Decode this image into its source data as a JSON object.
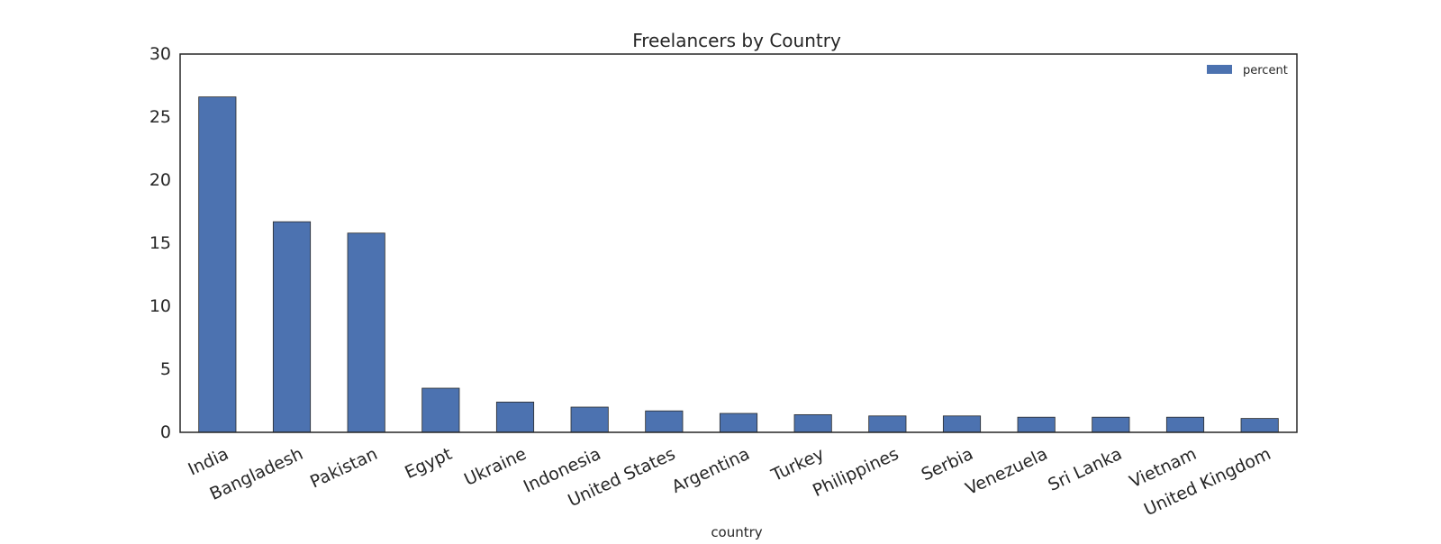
{
  "chart_data": {
    "type": "bar",
    "title": "Freelancers by Country",
    "xlabel": "country",
    "ylabel": "",
    "categories": [
      "India",
      "Bangladesh",
      "Pakistan",
      "Egypt",
      "Ukraine",
      "Indonesia",
      "United States",
      "Argentina",
      "Turkey",
      "Philippines",
      "Serbia",
      "Venezuela",
      "Sri Lanka",
      "Vietnam",
      "United Kingdom"
    ],
    "series": [
      {
        "name": "percent",
        "values": [
          26.6,
          16.7,
          15.8,
          3.5,
          2.4,
          2.0,
          1.7,
          1.5,
          1.4,
          1.3,
          1.3,
          1.2,
          1.2,
          1.2,
          1.1
        ],
        "color": "#4c72b0"
      }
    ],
    "ylim": [
      0,
      30
    ],
    "yticks": [
      0,
      5,
      10,
      15,
      20,
      25,
      30
    ],
    "grid": false,
    "legend_position": "top-right"
  }
}
